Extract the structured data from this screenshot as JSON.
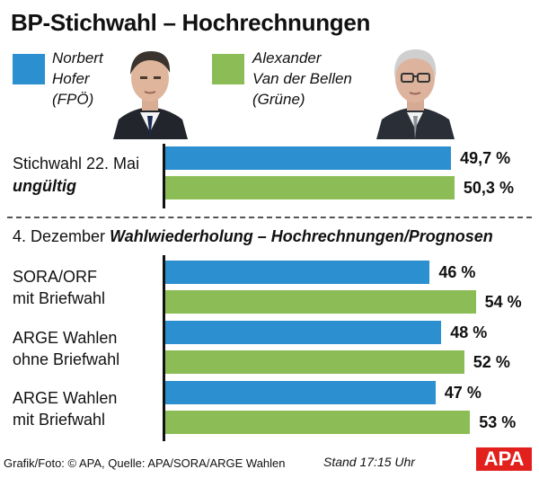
{
  "title": "BP-Stichwahl – Hochrechnungen",
  "colors": {
    "hofer": "#2c8fd0",
    "vdb": "#8cbc55",
    "text": "#111111",
    "logo": "#e2211c"
  },
  "candidates": [
    {
      "name": "Norbert\nHofer\n(FPÖ)",
      "color": "#2c8fd0"
    },
    {
      "name": "Alexander\nVan der Bellen\n(Grüne)",
      "color": "#8cbc55"
    }
  ],
  "chart_data": [
    {
      "type": "bar",
      "orientation": "horizontal",
      "title": "Stichwahl 22. Mai",
      "subtitle": "ungültig",
      "xlim": [
        0,
        100
      ],
      "categories": [
        "Stichwahl 22. Mai ungültig"
      ],
      "series": [
        {
          "name": "Norbert Hofer (FPÖ)",
          "values": [
            49.7
          ],
          "labels": [
            "49,7 %"
          ]
        },
        {
          "name": "Alexander Van der Bellen (Grüne)",
          "values": [
            50.3
          ],
          "labels": [
            "50,3 %"
          ]
        }
      ]
    },
    {
      "type": "bar",
      "orientation": "horizontal",
      "title": "4. Dezember Wahlwiederholung – Hochrechnungen/Prognosen",
      "xlim": [
        0,
        100
      ],
      "categories": [
        "SORA/ORF mit Briefwahl",
        "ARGE Wahlen ohne Briefwahl",
        "ARGE Wahlen mit Briefwahl"
      ],
      "series": [
        {
          "name": "Norbert Hofer (FPÖ)",
          "values": [
            46,
            48,
            47
          ],
          "labels": [
            "46 %",
            "48 %",
            "47 %"
          ]
        },
        {
          "name": "Alexander Van der Bellen (Grüne)",
          "values": [
            54,
            52,
            53
          ],
          "labels": [
            "54 %",
            "52 %",
            "53 %"
          ]
        }
      ]
    }
  ],
  "groups": [
    {
      "line1": "Stichwahl 22. Mai",
      "line2": "ungültig",
      "line2_bold": true,
      "chart": 0,
      "index": 0
    },
    {
      "line1": "SORA/ORF",
      "line2": "mit Briefwahl",
      "line2_bold": false,
      "chart": 1,
      "index": 0
    },
    {
      "line1": "ARGE Wahlen",
      "line2": "ohne Briefwahl",
      "line2_bold": false,
      "chart": 1,
      "index": 1
    },
    {
      "line1": "ARGE Wahlen",
      "line2": "mit Briefwahl",
      "line2_bold": false,
      "chart": 1,
      "index": 2
    }
  ],
  "section": {
    "date": "4. Dezember",
    "heading": "Wahlwiederholung – Hochrechnungen/Prognosen"
  },
  "footer": {
    "credit": "Grafik/Foto: © APA, Quelle: APA/SORA/ARGE Wahlen",
    "stand": "Stand 17:15 Uhr",
    "logo": "APA"
  }
}
